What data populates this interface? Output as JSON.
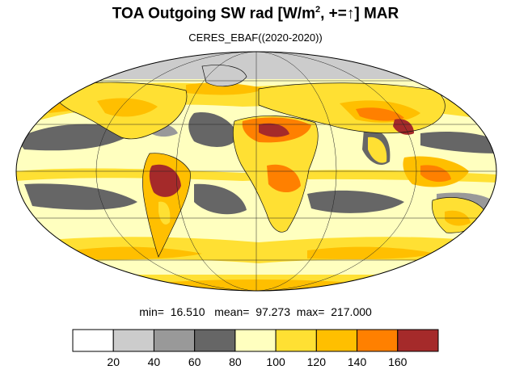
{
  "title": {
    "main_prefix": "TOA Outgoing SW rad [W/m",
    "superscript": "2",
    "main_suffix": ", +=↑] MAR"
  },
  "subtitle": "CERES_EBAF((2020-2020))",
  "stats": {
    "min_label": "min=",
    "min_value": "16.510",
    "mean_label": "mean=",
    "mean_value": "97.273",
    "max_label": "max=",
    "max_value": "217.000"
  },
  "colorbar": {
    "bins": [
      {
        "color": "#ffffff"
      },
      {
        "color": "#cccccc"
      },
      {
        "color": "#999999"
      },
      {
        "color": "#666666"
      },
      {
        "color": "#ffffbf"
      },
      {
        "color": "#ffe033"
      },
      {
        "color": "#ffbf00"
      },
      {
        "color": "#ff8000"
      },
      {
        "color": "#a52a2a"
      }
    ],
    "tick_labels": [
      "20",
      "40",
      "60",
      "80",
      "100",
      "120",
      "140",
      "160"
    ]
  },
  "map": {
    "projection": "mollweide",
    "colors": {
      "ocean_dark": "#666666",
      "ocean_mid": "#999999",
      "pale": "#ffffbf",
      "yellow": "#ffe033",
      "orange_yellow": "#ffbf00",
      "orange": "#ff8000",
      "brown": "#a52a2a",
      "polar": "#cccccc"
    }
  }
}
